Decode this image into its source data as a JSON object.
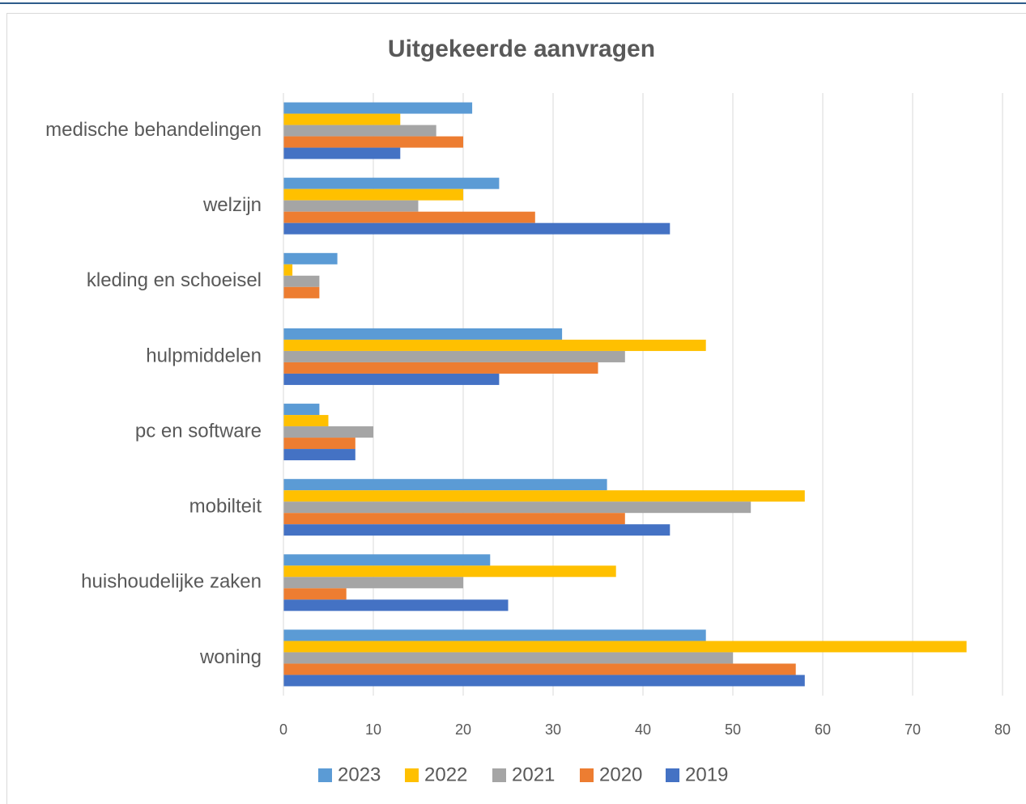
{
  "chart_data": {
    "type": "barh",
    "title": "Uitgekeerde aanvragen",
    "categories": [
      "medische behandelingen",
      "welzijn",
      "kleding en schoeisel",
      "hulpmiddelen",
      "pc en software",
      "mobilteit",
      "huishoudelijke zaken",
      "woning"
    ],
    "series": [
      {
        "name": "2023",
        "color": "#5b9bd5",
        "values": [
          21,
          24,
          6,
          31,
          4,
          36,
          23,
          47
        ]
      },
      {
        "name": "2022",
        "color": "#ffc000",
        "values": [
          13,
          20,
          1,
          47,
          5,
          58,
          37,
          76
        ]
      },
      {
        "name": "2021",
        "color": "#a5a5a5",
        "values": [
          17,
          15,
          4,
          38,
          10,
          52,
          20,
          50
        ]
      },
      {
        "name": "2020",
        "color": "#ed7d31",
        "values": [
          20,
          28,
          4,
          35,
          8,
          38,
          7,
          57
        ]
      },
      {
        "name": "2019",
        "color": "#4472c4",
        "values": [
          13,
          43,
          0,
          24,
          8,
          43,
          25,
          58
        ]
      }
    ],
    "xlim": [
      0,
      80
    ],
    "xticks": [
      0,
      10,
      20,
      30,
      40,
      50,
      60,
      70,
      80
    ],
    "grid": true,
    "legend": "bottom"
  }
}
